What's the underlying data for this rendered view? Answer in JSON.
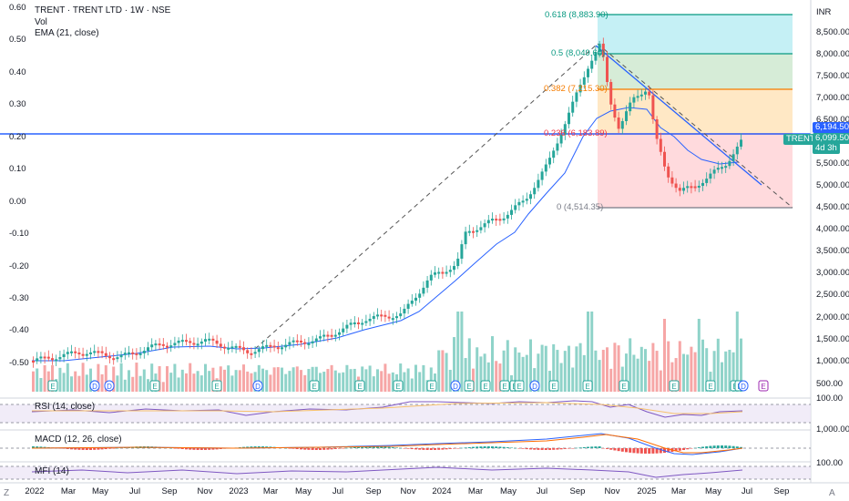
{
  "header": {
    "symbol_line": "TRENT · TRENT LTD · 1W · NSE",
    "vol": "Vol",
    "ema": "EMA (21, close)"
  },
  "panes": {
    "rsi": "RSI (14, close)",
    "macd": "MACD (12, 26, close)",
    "mfi": "MFI (14)"
  },
  "left_axis": [
    "0.60",
    "0.50",
    "0.40",
    "0.30",
    "0.20",
    "0.10",
    "0.00",
    "-0.10",
    "-0.20",
    "-0.30",
    "-0.40",
    "-0.50"
  ],
  "right_axis": {
    "currency": "INR",
    "ticks": [
      "8,500.00",
      "8,000.00",
      "7,500.00",
      "7,000.00",
      "6,500.00",
      "5,500.00",
      "5,000.00",
      "4,500.00",
      "4,000.00",
      "3,500.00",
      "3,000.00",
      "2,500.00",
      "2,000.00",
      "1,500.00",
      "1,000.00",
      "500.00"
    ],
    "pane_ticks": [
      "100.00",
      "1,000.00",
      "100.00"
    ]
  },
  "price_tags": {
    "line_price": "6,194.50",
    "symbol": "TRENT",
    "last_price": "6,099.50",
    "countdown": "4d 3h"
  },
  "fib_levels": [
    {
      "label": "0.618 (8,883.90)",
      "color": "#089981"
    },
    {
      "label": "0.5 (8,049.60)",
      "color": "#089981"
    },
    {
      "label": "0.382 (7,215.30)",
      "color": "#f57c00"
    },
    {
      "label": "0.236 (6,183.89)",
      "color": "#f23645"
    },
    {
      "label": "0 (4,514.35)",
      "color": "#787b86"
    }
  ],
  "x_axis": [
    "2022",
    "Mar",
    "May",
    "Jul",
    "Sep",
    "Nov",
    "2023",
    "Mar",
    "May",
    "Jul",
    "Sep",
    "Nov",
    "2024",
    "Mar",
    "May",
    "Jul",
    "Sep",
    "Nov",
    "2025",
    "Mar",
    "May",
    "Jul",
    "Sep"
  ],
  "event_markers": [
    "E",
    "D",
    "D",
    "E",
    "E",
    "D",
    "E",
    "E",
    "E",
    "E",
    "D",
    "E",
    "E",
    "E",
    "E",
    "E",
    "D",
    "E",
    "E",
    "E",
    "E",
    "E",
    "E",
    "E",
    "D"
  ],
  "footer": {
    "left": "Z",
    "right": "A"
  },
  "colors": {
    "up": "#26a69a",
    "down": "#ef5350",
    "ema": "#2962ff",
    "hline": "#2962ff",
    "vol_up": "#8fd3c9",
    "vol_down": "#f6a6a6",
    "rsi": "#7e57c2",
    "macd": "#2962ff",
    "signal": "#ff6d00",
    "mfi": "#7e57c2"
  }
}
